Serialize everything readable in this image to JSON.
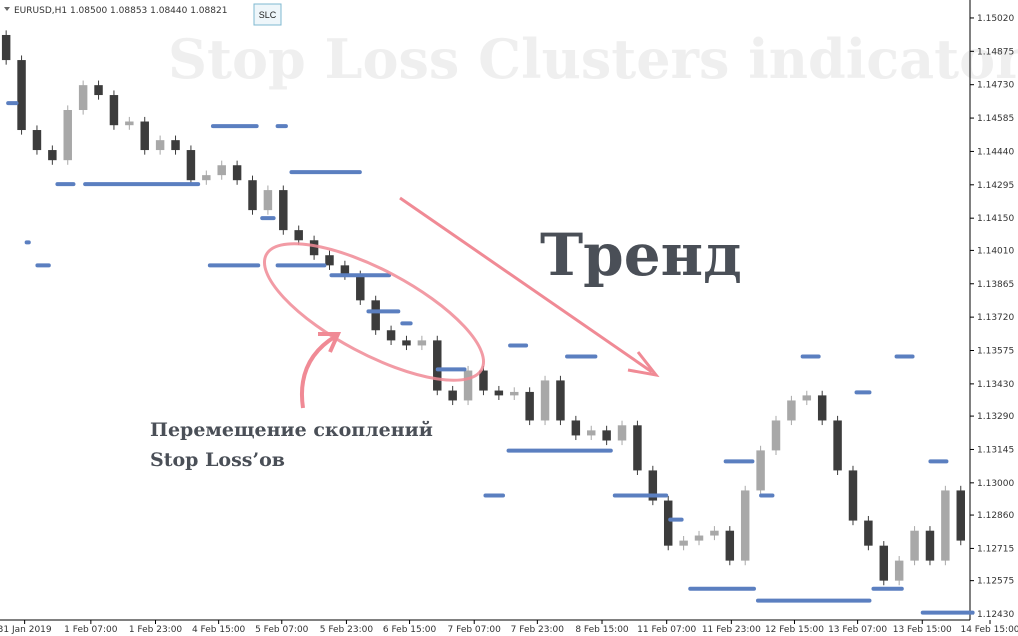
{
  "header": "EURUSD,H1  1.08500 1.08853 1.08440 1.08821",
  "button": "SLC",
  "chart_data": {
    "type": "candlestick",
    "title": "Stop Loss Clusters indicator",
    "annotations": [
      "Тренд",
      "Перемещение скоплений",
      "Stop Loss’ов"
    ],
    "up_color": "#a8a8a8",
    "down_color": "#3c3c3c",
    "cluster_color": "#5b7fc0",
    "grid": false,
    "xlim": [
      -0.4,
      62.6
    ],
    "ylim": [
      1.12404,
      1.15098
    ],
    "xticks": [
      {
        "value": 1.2,
        "label": "31 Jan 2019"
      },
      {
        "value": 5.5,
        "label": "1 Feb 07:00"
      },
      {
        "value": 9.7,
        "label": "1 Feb 23:00"
      },
      {
        "value": 13.8,
        "label": "4 Feb 15:00"
      },
      {
        "value": 17.9,
        "label": "5 Feb 07:00"
      },
      {
        "value": 22.1,
        "label": "5 Feb 23:00"
      },
      {
        "value": 26.2,
        "label": "6 Feb 15:00"
      },
      {
        "value": 30.4,
        "label": "7 Feb 07:00"
      },
      {
        "value": 34.5,
        "label": "7 Feb 23:00"
      },
      {
        "value": 38.7,
        "label": "8 Feb 15:00"
      },
      {
        "value": 42.9,
        "label": "11 Feb 07:00"
      },
      {
        "value": 47.1,
        "label": "11 Feb 23:00"
      },
      {
        "value": 51.2,
        "label": "12 Feb 15:00"
      },
      {
        "value": 55.3,
        "label": "13 Feb 07:00"
      },
      {
        "value": 59.5,
        "label": "13 Feb 15:00"
      },
      {
        "value": 63.9,
        "label": "14 Feb 15:00"
      }
    ],
    "yticks": [
      {
        "value": 1.1502,
        "label": "1.15020"
      },
      {
        "value": 1.14875,
        "label": "1.14875"
      },
      {
        "value": 1.1473,
        "label": "1.14730"
      },
      {
        "value": 1.14585,
        "label": "1.14585"
      },
      {
        "value": 1.1444,
        "label": "1.14440"
      },
      {
        "value": 1.14295,
        "label": "1.14295"
      },
      {
        "value": 1.1415,
        "label": "1.14150"
      },
      {
        "value": 1.1401,
        "label": "1.14010"
      },
      {
        "value": 1.13865,
        "label": "1.13865"
      },
      {
        "value": 1.1372,
        "label": "1.13720"
      },
      {
        "value": 1.13575,
        "label": "1.13575"
      },
      {
        "value": 1.1343,
        "label": "1.13430"
      },
      {
        "value": 1.1329,
        "label": "1.13290"
      },
      {
        "value": 1.13145,
        "label": "1.13145"
      },
      {
        "value": 1.13,
        "label": "1.13000"
      },
      {
        "value": 1.1286,
        "label": "1.12860"
      },
      {
        "value": 1.12715,
        "label": "1.12715"
      },
      {
        "value": 1.12575,
        "label": "1.12575"
      },
      {
        "value": 1.1243,
        "label": "1.12430"
      }
    ],
    "open": [
      1.14946,
      1.14837,
      1.14533,
      1.14446,
      1.14402,
      1.1462,
      1.14728,
      1.14685,
      1.14554,
      1.1457,
      1.14446,
      1.14489,
      1.14446,
      1.14315,
      1.14337,
      1.1438,
      1.14315,
      1.14185,
      1.14272,
      1.14098,
      1.14054,
      1.13989,
      1.13945,
      1.13902,
      1.13793,
      1.13663,
      1.13619,
      1.13597,
      1.13619,
      1.13401,
      1.13358,
      1.13488,
      1.13401,
      1.1338,
      1.13395,
      1.13271,
      1.13445,
      1.13271,
      1.13206,
      1.13228,
      1.13184,
      1.1325,
      1.13054,
      1.12923,
      1.12727,
      1.12749,
      1.12771,
      1.12792,
      1.12662,
      1.12967,
      1.13141,
      1.13271,
      1.13358,
      1.1338,
      1.13271,
      1.13054,
      1.12836,
      1.12727,
      1.12575,
      1.12662,
      1.12792,
      1.12662,
      1.12967
    ],
    "high": [
      1.14966,
      1.14857,
      1.14553,
      1.14466,
      1.1464,
      1.14748,
      1.14748,
      1.14705,
      1.1459,
      1.1459,
      1.14509,
      1.14509,
      1.14466,
      1.14357,
      1.144,
      1.144,
      1.14335,
      1.14292,
      1.14292,
      1.14118,
      1.14074,
      1.14009,
      1.13965,
      1.13922,
      1.13813,
      1.13683,
      1.13639,
      1.13639,
      1.13639,
      1.13421,
      1.13508,
      1.13508,
      1.13421,
      1.13415,
      1.13415,
      1.13465,
      1.13465,
      1.13291,
      1.13248,
      1.13248,
      1.1327,
      1.1327,
      1.13074,
      1.12943,
      1.12769,
      1.12791,
      1.12812,
      1.12812,
      1.12987,
      1.13161,
      1.13291,
      1.13378,
      1.134,
      1.134,
      1.13291,
      1.13074,
      1.12856,
      1.12747,
      1.12682,
      1.12812,
      1.12812,
      1.12987,
      1.12987
    ],
    "low": [
      1.14817,
      1.14513,
      1.14426,
      1.14382,
      1.14382,
      1.146,
      1.14665,
      1.14534,
      1.14534,
      1.14426,
      1.14426,
      1.14426,
      1.14295,
      1.14295,
      1.14317,
      1.14295,
      1.14165,
      1.14165,
      1.14078,
      1.14034,
      1.13969,
      1.13925,
      1.13882,
      1.13773,
      1.13643,
      1.13599,
      1.13577,
      1.13577,
      1.13381,
      1.13338,
      1.13338,
      1.13381,
      1.1336,
      1.1336,
      1.13251,
      1.13251,
      1.13251,
      1.13186,
      1.13186,
      1.13164,
      1.13164,
      1.13034,
      1.12903,
      1.12707,
      1.12707,
      1.12729,
      1.12751,
      1.12642,
      1.12642,
      1.12947,
      1.13121,
      1.13251,
      1.13338,
      1.13251,
      1.13034,
      1.12816,
      1.12707,
      1.12555,
      1.12555,
      1.12642,
      1.12642,
      1.12642,
      1.12729
    ],
    "close": [
      1.14837,
      1.14533,
      1.14446,
      1.14402,
      1.1462,
      1.14728,
      1.14685,
      1.14554,
      1.1457,
      1.14446,
      1.14489,
      1.14446,
      1.14315,
      1.14337,
      1.1438,
      1.14315,
      1.14185,
      1.14272,
      1.14098,
      1.14054,
      1.13989,
      1.13945,
      1.13902,
      1.13793,
      1.13663,
      1.13619,
      1.13597,
      1.13619,
      1.13401,
      1.13358,
      1.13488,
      1.13401,
      1.1338,
      1.13395,
      1.13271,
      1.13445,
      1.13271,
      1.13206,
      1.13228,
      1.13184,
      1.1325,
      1.13054,
      1.12923,
      1.12727,
      1.12749,
      1.12771,
      1.12792,
      1.12662,
      1.12967,
      1.13141,
      1.13271,
      1.13358,
      1.1338,
      1.13271,
      1.13054,
      1.12836,
      1.12727,
      1.12575,
      1.12662,
      1.12792,
      1.12662,
      1.12967,
      1.12749
    ],
    "clusters": [
      {
        "level": 1.1465,
        "start": 0,
        "end": 0.8
      },
      {
        "level": 1.14298,
        "start": 3.2,
        "end": 4.5
      },
      {
        "level": 1.14298,
        "start": 5,
        "end": 12.6
      },
      {
        "level": 1.14045,
        "start": 1.2,
        "end": 1.6
      },
      {
        "level": 1.13945,
        "start": 1.9,
        "end": 2.9
      },
      {
        "level": 1.13945,
        "start": 13.1,
        "end": 16.5
      },
      {
        "level": 1.13945,
        "start": 17.5,
        "end": 20.8
      },
      {
        "level": 1.1455,
        "start": 13.3,
        "end": 16.4
      },
      {
        "level": 1.1455,
        "start": 17.5,
        "end": 18.3
      },
      {
        "level": 1.1435,
        "start": 18.4,
        "end": 23.1
      },
      {
        "level": 1.1415,
        "start": 16.5,
        "end": 17.5
      },
      {
        "level": 1.13902,
        "start": 21,
        "end": 25
      },
      {
        "level": 1.13745,
        "start": 23.4,
        "end": 25.6
      },
      {
        "level": 1.13693,
        "start": 25.6,
        "end": 26.4
      },
      {
        "level": 1.13493,
        "start": 27.9,
        "end": 29.9
      },
      {
        "level": 1.1314,
        "start": 32.5,
        "end": 39.4
      },
      {
        "level": 1.12945,
        "start": 31,
        "end": 32.4
      },
      {
        "level": 1.12945,
        "start": 39.4,
        "end": 43
      },
      {
        "level": 1.1284,
        "start": 43,
        "end": 44
      },
      {
        "level": 1.13093,
        "start": 46.6,
        "end": 48.6
      },
      {
        "level": 1.1254,
        "start": 44.3,
        "end": 48.7
      },
      {
        "level": 1.12488,
        "start": 48.7,
        "end": 56.2
      },
      {
        "level": 1.1254,
        "start": 56.2,
        "end": 58.3
      },
      {
        "level": 1.12436,
        "start": 59.4,
        "end": 62.9
      },
      {
        "level": 1.12945,
        "start": 48.9,
        "end": 49.9
      },
      {
        "level": 1.13393,
        "start": 55.1,
        "end": 56.2
      },
      {
        "level": 1.13093,
        "start": 59.9,
        "end": 61.2
      },
      {
        "level": 1.13549,
        "start": 36.3,
        "end": 38.4
      },
      {
        "level": 1.13597,
        "start": 32.6,
        "end": 33.9
      },
      {
        "level": 1.13549,
        "start": 57.7,
        "end": 59
      },
      {
        "level": 1.13549,
        "start": 51.6,
        "end": 52.9
      }
    ]
  }
}
